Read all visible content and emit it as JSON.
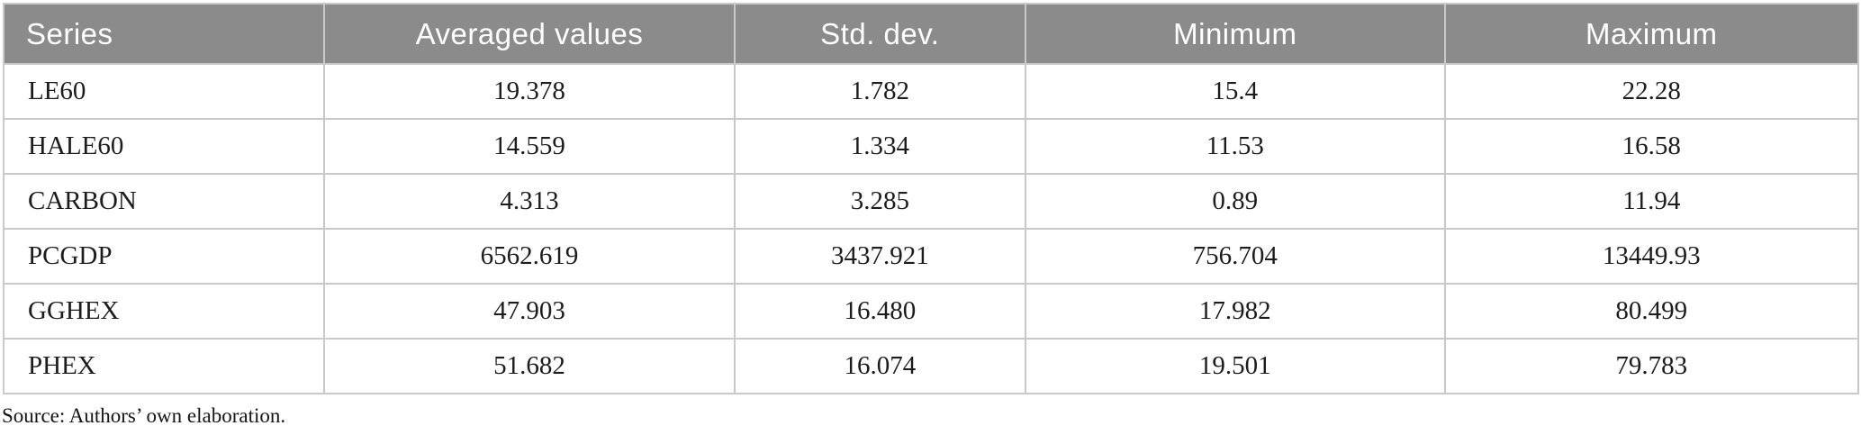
{
  "table": {
    "columns": [
      {
        "label": "Series"
      },
      {
        "label": "Averaged values"
      },
      {
        "label": "Std. dev."
      },
      {
        "label": "Minimum"
      },
      {
        "label": "Maximum"
      }
    ],
    "rows": [
      {
        "series": "LE60",
        "avg": "19.378",
        "std": "1.782",
        "min": "15.4",
        "max": "22.28"
      },
      {
        "series": "HALE60",
        "avg": "14.559",
        "std": "1.334",
        "min": "11.53",
        "max": "16.58"
      },
      {
        "series": "CARBON",
        "avg": "4.313",
        "std": "3.285",
        "min": "0.89",
        "max": "11.94"
      },
      {
        "series": "PCGDP",
        "avg": "6562.619",
        "std": "3437.921",
        "min": "756.704",
        "max": "13449.93"
      },
      {
        "series": "GGHEX",
        "avg": "47.903",
        "std": "16.480",
        "min": "17.982",
        "max": "80.499"
      },
      {
        "series": "PHEX",
        "avg": "51.682",
        "std": "16.074",
        "min": "19.501",
        "max": "79.783"
      }
    ]
  },
  "footer": {
    "source_note": "Source: Authors’ own elaboration."
  },
  "colors": {
    "header_bg": "#8b8b8b",
    "header_text": "#ffffff",
    "border": "#c9c9c9",
    "body_text": "#1c1c1c"
  }
}
